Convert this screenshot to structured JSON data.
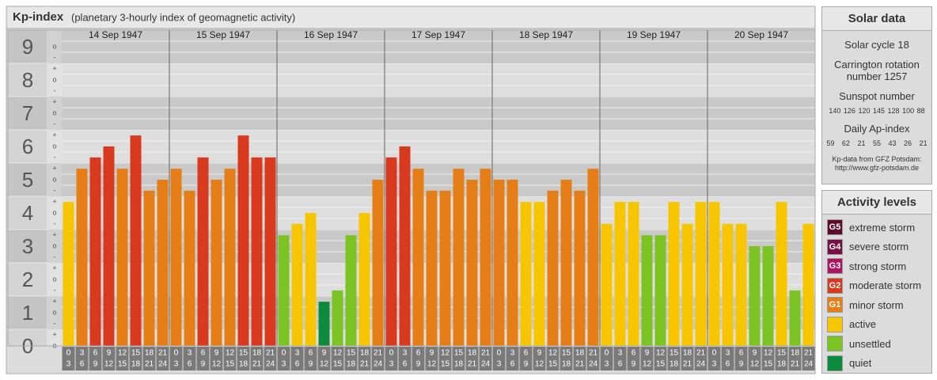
{
  "chart_data": {
    "type": "bar",
    "title": "Kp-index",
    "subtitle": "(planetary 3-hourly index of geomagnetic activity)",
    "ylim": [
      0,
      9.5
    ],
    "yticks": [
      0,
      1,
      2,
      3,
      4,
      5,
      6,
      7,
      8,
      9
    ],
    "minor_labels": [
      "+",
      "o",
      "-"
    ],
    "intervals": [
      [
        0,
        3
      ],
      [
        3,
        6
      ],
      [
        6,
        9
      ],
      [
        9,
        12
      ],
      [
        12,
        15
      ],
      [
        15,
        18
      ],
      [
        18,
        21
      ],
      [
        21,
        24
      ]
    ],
    "series": [
      {
        "name": "14 Sep 1947",
        "values": [
          4.33,
          5.33,
          5.67,
          6.0,
          5.33,
          6.33,
          4.67,
          5.0
        ],
        "colors": [
          "#f7c600",
          "#e67e17",
          "#d93a1e",
          "#d93a1e",
          "#e67e17",
          "#d93a1e",
          "#e67e17",
          "#e67e17"
        ]
      },
      {
        "name": "15 Sep 1947",
        "values": [
          5.33,
          4.67,
          5.67,
          5.0,
          5.33,
          6.33,
          5.67,
          5.67
        ],
        "colors": [
          "#e67e17",
          "#e67e17",
          "#d93a1e",
          "#e67e17",
          "#e67e17",
          "#d93a1e",
          "#d93a1e",
          "#d93a1e"
        ]
      },
      {
        "name": "16 Sep 1947",
        "values": [
          3.33,
          3.67,
          4.0,
          1.33,
          1.67,
          3.33,
          4.0,
          5.0
        ],
        "colors": [
          "#7cc424",
          "#f7c600",
          "#f7c600",
          "#0e8a3c",
          "#7cc424",
          "#7cc424",
          "#f7c600",
          "#e67e17"
        ]
      },
      {
        "name": "17 Sep 1947",
        "values": [
          5.67,
          6.0,
          5.33,
          4.67,
          4.67,
          5.33,
          5.0,
          5.33
        ],
        "colors": [
          "#d93a1e",
          "#d93a1e",
          "#e67e17",
          "#e67e17",
          "#e67e17",
          "#e67e17",
          "#e67e17",
          "#e67e17"
        ]
      },
      {
        "name": "18 Sep 1947",
        "values": [
          5.0,
          5.0,
          4.33,
          4.33,
          4.67,
          5.0,
          4.67,
          5.33
        ],
        "colors": [
          "#e67e17",
          "#e67e17",
          "#f7c600",
          "#f7c600",
          "#e67e17",
          "#e67e17",
          "#e67e17",
          "#e67e17"
        ]
      },
      {
        "name": "19 Sep 1947",
        "values": [
          3.67,
          4.33,
          4.33,
          3.33,
          3.33,
          4.33,
          3.67,
          4.33
        ],
        "colors": [
          "#f7c600",
          "#f7c600",
          "#f7c600",
          "#7cc424",
          "#7cc424",
          "#f7c600",
          "#f7c600",
          "#f7c600"
        ]
      },
      {
        "name": "20 Sep 1947",
        "values": [
          4.33,
          3.67,
          3.67,
          3.0,
          3.0,
          4.33,
          1.67,
          3.67
        ],
        "colors": [
          "#f7c600",
          "#f7c600",
          "#f7c600",
          "#7cc424",
          "#7cc424",
          "#f7c600",
          "#7cc424",
          "#f7c600"
        ]
      }
    ]
  },
  "solar_data": {
    "title": "Solar data",
    "solar_cycle": "Solar cycle 18",
    "carrington": "Carrington rotation number 1257",
    "sunspot_label": "Sunspot number",
    "sunspot_numbers": [
      140,
      126,
      120,
      145,
      128,
      100,
      88
    ],
    "ap_label": "Daily Ap-index",
    "ap_values": [
      59,
      62,
      21,
      55,
      43,
      26,
      21
    ],
    "source": "Kp-data from GFZ Potsdam:",
    "source_url": "http://www.gfz-potsdam.de"
  },
  "activity_levels": {
    "title": "Activity levels",
    "items": [
      {
        "badge": "G5",
        "label": "extreme storm",
        "color": "#5c0a2e"
      },
      {
        "badge": "G4",
        "label": "severe storm",
        "color": "#7a0f45"
      },
      {
        "badge": "G3",
        "label": "strong storm",
        "color": "#b0125f"
      },
      {
        "badge": "G2",
        "label": "moderate storm",
        "color": "#d93a1e"
      },
      {
        "badge": "G1",
        "label": "minor storm",
        "color": "#e67e17"
      },
      {
        "label": "active",
        "color": "#f7c600"
      },
      {
        "label": "unsettled",
        "color": "#7cc424"
      },
      {
        "label": "quiet",
        "color": "#0e8a3c"
      }
    ]
  }
}
